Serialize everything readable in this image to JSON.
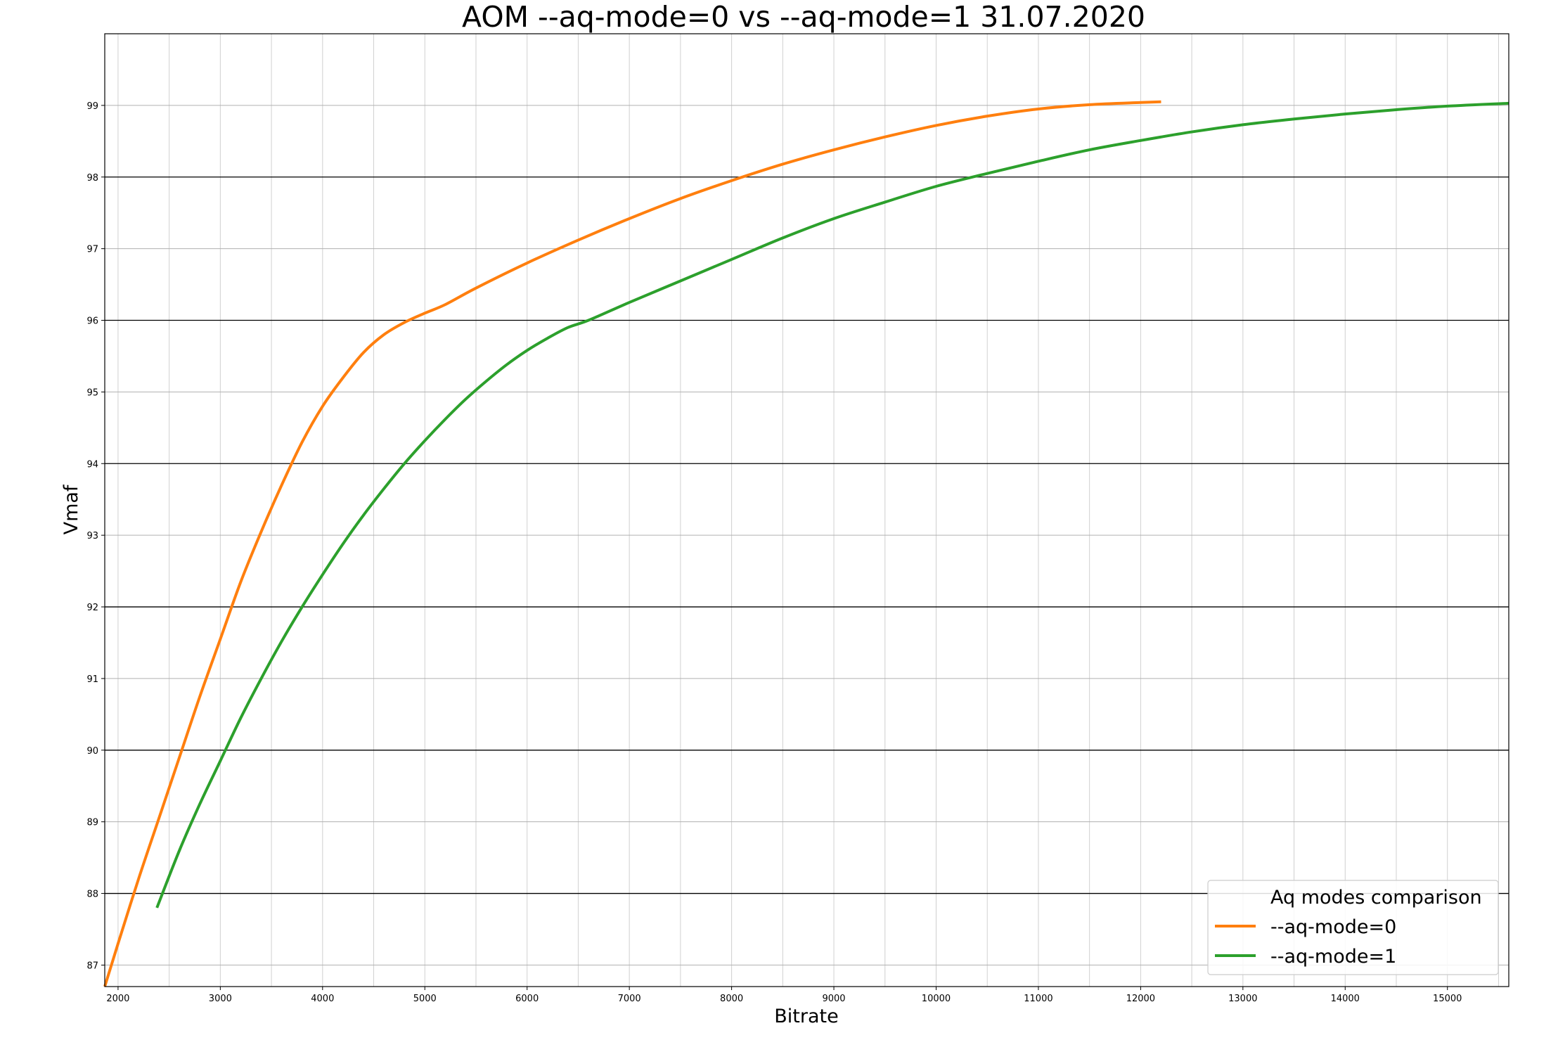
{
  "chart_data": {
    "type": "line",
    "title": "AOM --aq-mode=0 vs --aq-mode=1  31.07.2020",
    "xlabel": "Bitrate",
    "ylabel": "Vmaf",
    "xlim": [
      1870,
      15600
    ],
    "ylim": [
      86.7,
      100.0
    ],
    "x_ticks": [
      2000,
      3000,
      4000,
      5000,
      6000,
      7000,
      8000,
      9000,
      10000,
      11000,
      12000,
      13000,
      14000,
      15000
    ],
    "x_minor_step": 500,
    "y_ticks": [
      87,
      88,
      89,
      90,
      91,
      92,
      93,
      94,
      95,
      96,
      97,
      98,
      99
    ],
    "grid": true,
    "legend": {
      "title": "Aq modes comparison",
      "placement": "lower-right"
    },
    "series": [
      {
        "name": "--aq-mode=0",
        "color": "#ff7f0e",
        "x": [
          1870,
          2000,
          2200,
          2400,
          2600,
          2800,
          3000,
          3200,
          3400,
          3600,
          3800,
          4000,
          4200,
          4400,
          4600,
          4800,
          5000,
          5200,
          5500,
          6000,
          6500,
          7000,
          7500,
          8000,
          8500,
          9000,
          9500,
          10000,
          10500,
          11000,
          11500,
          12000,
          12200
        ],
        "values": [
          86.7,
          87.3,
          88.2,
          89.05,
          89.9,
          90.75,
          91.55,
          92.35,
          93.05,
          93.7,
          94.3,
          94.8,
          95.2,
          95.55,
          95.8,
          95.97,
          96.1,
          96.22,
          96.45,
          96.8,
          97.12,
          97.42,
          97.7,
          97.95,
          98.18,
          98.38,
          98.56,
          98.72,
          98.85,
          98.95,
          99.01,
          99.04,
          99.05
        ]
      },
      {
        "name": "--aq-mode=1",
        "color": "#2ca02c",
        "x": [
          2380,
          2600,
          2800,
          3000,
          3200,
          3400,
          3600,
          3800,
          4000,
          4200,
          4400,
          4600,
          4800,
          5000,
          5200,
          5400,
          5600,
          5800,
          6000,
          6200,
          6400,
          6600,
          7000,
          7500,
          8000,
          8500,
          9000,
          9500,
          10000,
          10500,
          11000,
          11500,
          12000,
          12500,
          13000,
          13500,
          14000,
          14500,
          15000,
          15600
        ],
        "values": [
          87.8,
          88.6,
          89.25,
          89.85,
          90.45,
          91.0,
          91.52,
          92.0,
          92.45,
          92.88,
          93.28,
          93.65,
          94.0,
          94.32,
          94.62,
          94.9,
          95.15,
          95.38,
          95.58,
          95.75,
          95.9,
          96.0,
          96.25,
          96.55,
          96.85,
          97.15,
          97.42,
          97.65,
          97.87,
          98.05,
          98.22,
          98.38,
          98.51,
          98.63,
          98.73,
          98.81,
          98.88,
          98.94,
          98.99,
          99.03
        ]
      }
    ]
  }
}
